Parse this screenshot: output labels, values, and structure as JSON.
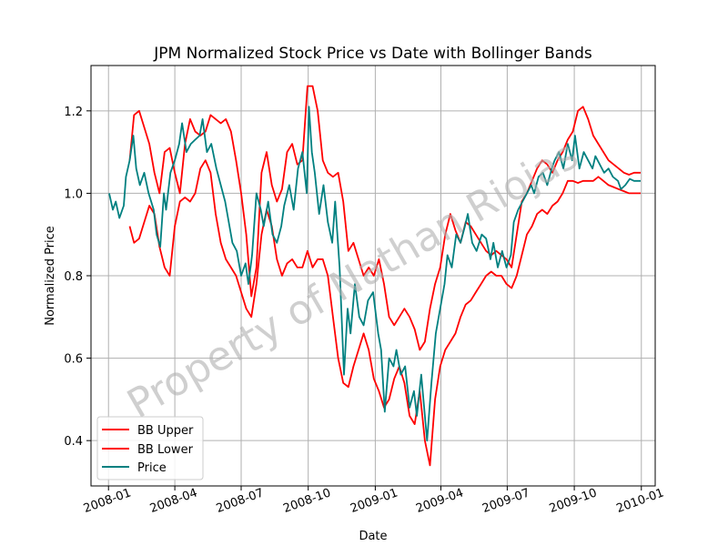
{
  "chart_data": {
    "type": "line",
    "title": "JPM Normalized Stock Price vs Date with Bollinger Bands",
    "xlabel": "Date",
    "ylabel": "Normalized Price",
    "x_ticks": [
      "2008-01",
      "2008-04",
      "2008-07",
      "2008-10",
      "2009-01",
      "2009-04",
      "2009-07",
      "2009-10",
      "2010-01"
    ],
    "y_ticks": [
      "0.4",
      "0.6",
      "0.8",
      "1.0",
      "1.2"
    ],
    "xlim": [
      "2007-12-08",
      "2010-01-20"
    ],
    "ylim": [
      0.29,
      1.31
    ],
    "grid": true,
    "legend_position": "lower-left",
    "watermark": "Property of Nathan Riojas",
    "series": [
      {
        "name": "BB Upper",
        "color": "#ff0000",
        "x": [
          "2008-01-30",
          "2008-02-05",
          "2008-02-12",
          "2008-02-19",
          "2008-02-26",
          "2008-03-04",
          "2008-03-11",
          "2008-03-18",
          "2008-03-25",
          "2008-04-01",
          "2008-04-08",
          "2008-04-15",
          "2008-04-22",
          "2008-04-29",
          "2008-05-06",
          "2008-05-13",
          "2008-05-20",
          "2008-05-27",
          "2008-06-03",
          "2008-06-10",
          "2008-06-17",
          "2008-06-24",
          "2008-07-01",
          "2008-07-08",
          "2008-07-15",
          "2008-07-22",
          "2008-07-29",
          "2008-08-05",
          "2008-08-12",
          "2008-08-19",
          "2008-08-26",
          "2008-09-02",
          "2008-09-09",
          "2008-09-16",
          "2008-09-23",
          "2008-09-30",
          "2008-10-07",
          "2008-10-14",
          "2008-10-21",
          "2008-10-28",
          "2008-11-04",
          "2008-11-11",
          "2008-11-18",
          "2008-11-25",
          "2008-12-02",
          "2008-12-09",
          "2008-12-16",
          "2008-12-23",
          "2008-12-30",
          "2009-01-06",
          "2009-01-13",
          "2009-01-20",
          "2009-01-27",
          "2009-02-03",
          "2009-02-10",
          "2009-02-17",
          "2009-02-24",
          "2009-03-03",
          "2009-03-10",
          "2009-03-17",
          "2009-03-24",
          "2009-03-31",
          "2009-04-07",
          "2009-04-14",
          "2009-04-21",
          "2009-04-28",
          "2009-05-05",
          "2009-05-12",
          "2009-05-19",
          "2009-05-26",
          "2009-06-02",
          "2009-06-09",
          "2009-06-16",
          "2009-06-23",
          "2009-06-30",
          "2009-07-07",
          "2009-07-14",
          "2009-07-21",
          "2009-07-28",
          "2009-08-04",
          "2009-08-11",
          "2009-08-18",
          "2009-08-25",
          "2009-09-01",
          "2009-09-08",
          "2009-09-15",
          "2009-09-22",
          "2009-09-29",
          "2009-10-06",
          "2009-10-13",
          "2009-10-20",
          "2009-10-27",
          "2009-11-03",
          "2009-11-10",
          "2009-11-17",
          "2009-11-24",
          "2009-12-01",
          "2009-12-08",
          "2009-12-15",
          "2009-12-22",
          "2009-12-31"
        ],
        "y": [
          1.08,
          1.19,
          1.2,
          1.16,
          1.12,
          1.05,
          1.0,
          1.1,
          1.11,
          1.05,
          1.0,
          1.12,
          1.18,
          1.15,
          1.14,
          1.15,
          1.19,
          1.18,
          1.17,
          1.18,
          1.15,
          1.08,
          1.0,
          0.9,
          0.75,
          0.82,
          1.05,
          1.1,
          1.02,
          0.98,
          1.01,
          1.1,
          1.12,
          1.07,
          1.08,
          1.26,
          1.26,
          1.2,
          1.08,
          1.05,
          1.04,
          1.05,
          0.98,
          0.86,
          0.88,
          0.84,
          0.8,
          0.82,
          0.8,
          0.84,
          0.78,
          0.7,
          0.68,
          0.7,
          0.72,
          0.7,
          0.67,
          0.62,
          0.64,
          0.72,
          0.78,
          0.82,
          0.9,
          0.95,
          0.91,
          0.88,
          0.93,
          0.92,
          0.9,
          0.88,
          0.86,
          0.85,
          0.86,
          0.85,
          0.84,
          0.82,
          0.9,
          0.98,
          1.0,
          1.03,
          1.06,
          1.08,
          1.07,
          1.05,
          1.08,
          1.1,
          1.13,
          1.15,
          1.2,
          1.21,
          1.18,
          1.14,
          1.12,
          1.1,
          1.08,
          1.07,
          1.06,
          1.05,
          1.045,
          1.05,
          1.05
        ]
      },
      {
        "name": "BB Lower",
        "color": "#ff0000",
        "x": [
          "2008-01-30",
          "2008-02-05",
          "2008-02-12",
          "2008-02-19",
          "2008-02-26",
          "2008-03-04",
          "2008-03-11",
          "2008-03-18",
          "2008-03-25",
          "2008-04-01",
          "2008-04-08",
          "2008-04-15",
          "2008-04-22",
          "2008-04-29",
          "2008-05-06",
          "2008-05-13",
          "2008-05-20",
          "2008-05-27",
          "2008-06-03",
          "2008-06-10",
          "2008-06-17",
          "2008-06-24",
          "2008-07-01",
          "2008-07-08",
          "2008-07-15",
          "2008-07-22",
          "2008-07-29",
          "2008-08-05",
          "2008-08-12",
          "2008-08-19",
          "2008-08-26",
          "2008-09-02",
          "2008-09-09",
          "2008-09-16",
          "2008-09-23",
          "2008-09-30",
          "2008-10-07",
          "2008-10-14",
          "2008-10-21",
          "2008-10-28",
          "2008-11-04",
          "2008-11-11",
          "2008-11-18",
          "2008-11-25",
          "2008-12-02",
          "2008-12-09",
          "2008-12-16",
          "2008-12-23",
          "2008-12-30",
          "2009-01-06",
          "2009-01-13",
          "2009-01-20",
          "2009-01-27",
          "2009-02-03",
          "2009-02-10",
          "2009-02-17",
          "2009-02-24",
          "2009-03-03",
          "2009-03-10",
          "2009-03-17",
          "2009-03-24",
          "2009-03-31",
          "2009-04-07",
          "2009-04-14",
          "2009-04-21",
          "2009-04-28",
          "2009-05-05",
          "2009-05-12",
          "2009-05-19",
          "2009-05-26",
          "2009-06-02",
          "2009-06-09",
          "2009-06-16",
          "2009-06-23",
          "2009-06-30",
          "2009-07-07",
          "2009-07-14",
          "2009-07-21",
          "2009-07-28",
          "2009-08-04",
          "2009-08-11",
          "2009-08-18",
          "2009-08-25",
          "2009-09-01",
          "2009-09-08",
          "2009-09-15",
          "2009-09-22",
          "2009-09-29",
          "2009-10-06",
          "2009-10-13",
          "2009-10-20",
          "2009-10-27",
          "2009-11-03",
          "2009-11-10",
          "2009-11-17",
          "2009-11-24",
          "2009-12-01",
          "2009-12-08",
          "2009-12-15",
          "2009-12-22",
          "2009-12-31"
        ],
        "y": [
          0.92,
          0.88,
          0.89,
          0.93,
          0.97,
          0.95,
          0.87,
          0.82,
          0.8,
          0.92,
          0.98,
          0.99,
          0.98,
          1.0,
          1.06,
          1.08,
          1.05,
          0.95,
          0.88,
          0.84,
          0.82,
          0.8,
          0.76,
          0.72,
          0.7,
          0.78,
          0.9,
          0.96,
          0.92,
          0.84,
          0.8,
          0.83,
          0.84,
          0.82,
          0.82,
          0.86,
          0.82,
          0.84,
          0.84,
          0.8,
          0.7,
          0.6,
          0.54,
          0.53,
          0.58,
          0.62,
          0.66,
          0.62,
          0.55,
          0.52,
          0.48,
          0.5,
          0.55,
          0.58,
          0.54,
          0.46,
          0.44,
          0.52,
          0.4,
          0.34,
          0.5,
          0.58,
          0.62,
          0.64,
          0.66,
          0.7,
          0.73,
          0.74,
          0.76,
          0.78,
          0.8,
          0.81,
          0.8,
          0.8,
          0.78,
          0.77,
          0.8,
          0.85,
          0.9,
          0.92,
          0.95,
          0.96,
          0.95,
          0.97,
          0.98,
          1.0,
          1.03,
          1.03,
          1.025,
          1.03,
          1.03,
          1.03,
          1.04,
          1.03,
          1.02,
          1.015,
          1.01,
          1.005,
          1.0,
          1.0,
          1.0
        ]
      },
      {
        "name": "Price",
        "color": "#008080",
        "x": [
          "2008-01-02",
          "2008-01-07",
          "2008-01-11",
          "2008-01-16",
          "2008-01-22",
          "2008-01-25",
          "2008-01-30",
          "2008-02-04",
          "2008-02-08",
          "2008-02-13",
          "2008-02-19",
          "2008-02-25",
          "2008-03-03",
          "2008-03-07",
          "2008-03-12",
          "2008-03-17",
          "2008-03-20",
          "2008-03-26",
          "2008-04-01",
          "2008-04-07",
          "2008-04-11",
          "2008-04-17",
          "2008-04-23",
          "2008-04-29",
          "2008-05-05",
          "2008-05-09",
          "2008-05-15",
          "2008-05-21",
          "2008-05-28",
          "2008-06-03",
          "2008-06-09",
          "2008-06-13",
          "2008-06-19",
          "2008-06-25",
          "2008-07-01",
          "2008-07-07",
          "2008-07-11",
          "2008-07-16",
          "2008-07-22",
          "2008-07-28",
          "2008-08-01",
          "2008-08-07",
          "2008-08-13",
          "2008-08-19",
          "2008-08-25",
          "2008-08-29",
          "2008-09-05",
          "2008-09-11",
          "2008-09-17",
          "2008-09-23",
          "2008-09-29",
          "2008-10-02",
          "2008-10-06",
          "2008-10-10",
          "2008-10-16",
          "2008-10-22",
          "2008-10-28",
          "2008-11-03",
          "2008-11-07",
          "2008-11-13",
          "2008-11-19",
          "2008-11-24",
          "2008-11-28",
          "2008-12-04",
          "2008-12-10",
          "2008-12-16",
          "2008-12-22",
          "2008-12-29",
          "2009-01-05",
          "2009-01-09",
          "2009-01-14",
          "2009-01-20",
          "2009-01-26",
          "2009-01-30",
          "2009-02-05",
          "2009-02-11",
          "2009-02-17",
          "2009-02-23",
          "2009-02-27",
          "2009-03-05",
          "2009-03-09",
          "2009-03-13",
          "2009-03-19",
          "2009-03-25",
          "2009-03-31",
          "2009-04-06",
          "2009-04-10",
          "2009-04-16",
          "2009-04-22",
          "2009-04-28",
          "2009-05-04",
          "2009-05-08",
          "2009-05-14",
          "2009-05-20",
          "2009-05-27",
          "2009-06-02",
          "2009-06-08",
          "2009-06-12",
          "2009-06-18",
          "2009-06-24",
          "2009-06-30",
          "2009-07-06",
          "2009-07-10",
          "2009-07-16",
          "2009-07-22",
          "2009-07-28",
          "2009-08-03",
          "2009-08-07",
          "2009-08-13",
          "2009-08-19",
          "2009-08-25",
          "2009-08-31",
          "2009-09-04",
          "2009-09-10",
          "2009-09-16",
          "2009-09-22",
          "2009-09-28",
          "2009-10-02",
          "2009-10-08",
          "2009-10-14",
          "2009-10-20",
          "2009-10-26",
          "2009-10-30",
          "2009-11-05",
          "2009-11-11",
          "2009-11-17",
          "2009-11-23",
          "2009-11-30",
          "2009-12-04",
          "2009-12-10",
          "2009-12-16",
          "2009-12-22",
          "2009-12-31"
        ],
        "y": [
          1.0,
          0.96,
          0.98,
          0.94,
          0.97,
          1.04,
          1.08,
          1.14,
          1.06,
          1.02,
          1.05,
          1.0,
          0.96,
          0.9,
          0.87,
          1.0,
          0.96,
          1.05,
          1.08,
          1.12,
          1.17,
          1.1,
          1.12,
          1.13,
          1.14,
          1.18,
          1.1,
          1.12,
          1.06,
          1.02,
          0.98,
          0.94,
          0.88,
          0.86,
          0.8,
          0.83,
          0.78,
          0.85,
          1.0,
          0.96,
          0.92,
          0.98,
          0.9,
          0.88,
          0.92,
          0.97,
          1.02,
          0.96,
          1.06,
          1.1,
          1.0,
          1.21,
          1.1,
          1.05,
          0.95,
          1.02,
          0.93,
          0.88,
          0.98,
          0.82,
          0.56,
          0.72,
          0.66,
          0.78,
          0.7,
          0.68,
          0.74,
          0.76,
          0.66,
          0.62,
          0.47,
          0.6,
          0.58,
          0.62,
          0.56,
          0.58,
          0.48,
          0.52,
          0.46,
          0.56,
          0.48,
          0.4,
          0.54,
          0.66,
          0.72,
          0.78,
          0.85,
          0.82,
          0.9,
          0.88,
          0.92,
          0.95,
          0.88,
          0.86,
          0.9,
          0.89,
          0.84,
          0.88,
          0.82,
          0.86,
          0.82,
          0.85,
          0.93,
          0.96,
          0.98,
          1.0,
          1.02,
          1.0,
          1.04,
          1.05,
          1.02,
          1.06,
          1.08,
          1.1,
          1.06,
          1.12,
          1.08,
          1.14,
          1.06,
          1.1,
          1.08,
          1.06,
          1.09,
          1.07,
          1.05,
          1.06,
          1.04,
          1.03,
          1.01,
          1.02,
          1.035,
          1.03,
          1.03
        ]
      }
    ]
  }
}
